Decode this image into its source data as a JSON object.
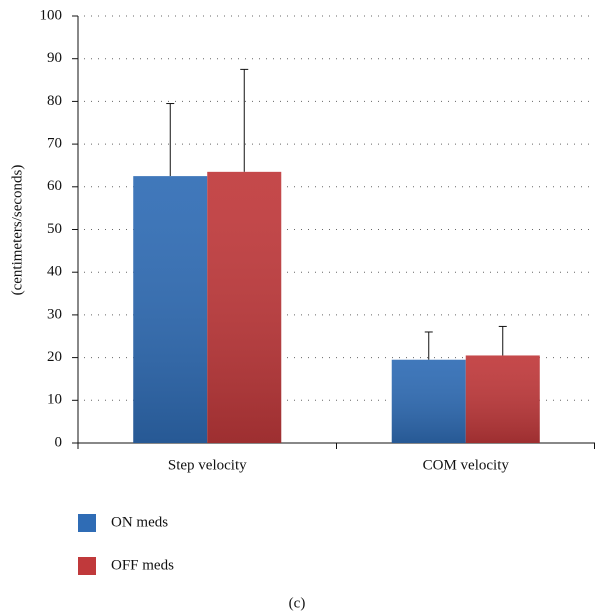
{
  "chart_data": {
    "type": "bar",
    "y_label": "(centimeters/seconds)",
    "caption": "(c)",
    "categories": [
      "Step velocity",
      "COM velocity"
    ],
    "series": [
      {
        "name": "ON meds",
        "color": "#2f6cb5",
        "values": [
          62.5,
          19.5
        ],
        "errors": [
          17,
          6.5
        ]
      },
      {
        "name": "OFF meds",
        "color": "#c0393b",
        "values": [
          63.5,
          20.5
        ],
        "errors": [
          24,
          6.8
        ]
      }
    ],
    "ylim": [
      0,
      100
    ],
    "yticks": [
      0,
      10,
      20,
      30,
      40,
      50,
      60,
      70,
      80,
      90,
      100
    ],
    "grid": true
  }
}
